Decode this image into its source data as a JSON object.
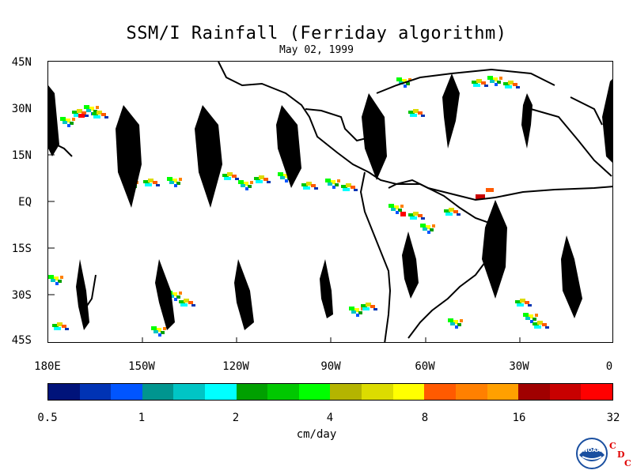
{
  "title": "SSM/I Rainfall (Ferriday algorithm)",
  "date": "May 02, 1999",
  "map": {
    "lat_labels": [
      "45N",
      "30N",
      "15N",
      "EQ",
      "15S",
      "30S",
      "45S"
    ],
    "lon_labels": [
      "180E",
      "150W",
      "120W",
      "90W",
      "60W",
      "30W",
      "0"
    ],
    "land_color": "#ffffff",
    "coast_color": "#000000",
    "no_data_color": "#000000"
  },
  "colorbar": {
    "colors": [
      "#00137a",
      "#0033b4",
      "#0055ff",
      "#00958f",
      "#00c5c5",
      "#00ffff",
      "#00a000",
      "#00c800",
      "#00ff00",
      "#b4b400",
      "#dcdc00",
      "#ffff00",
      "#ff5a00",
      "#ff8000",
      "#ffa000",
      "#a00000",
      "#c80000",
      "#ff0000"
    ],
    "tick_labels": [
      "0.5",
      "1",
      "2",
      "4",
      "8",
      "16",
      "32"
    ],
    "unit": "cm/day"
  },
  "logo": {
    "icon": "noaa-logo",
    "text": "NOAA",
    "letters": [
      "C",
      "D",
      "C"
    ]
  }
}
